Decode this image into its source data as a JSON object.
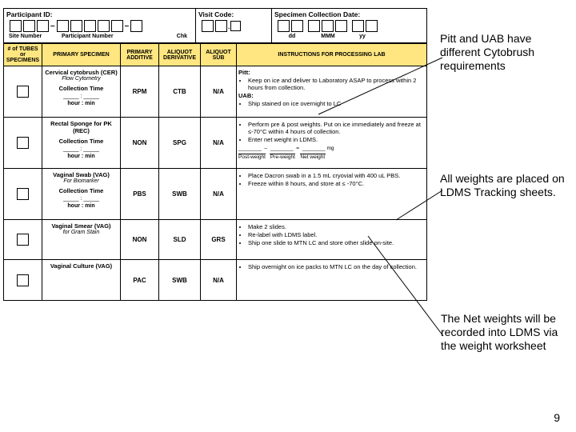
{
  "header": {
    "participant_id_label": "Participant ID:",
    "visit_code_label": "Visit Code:",
    "collection_date_label": "Specimen Collection Date:",
    "site_number": "Site Number",
    "participant_number": "Participant Number",
    "chk": "Chk",
    "dd": "dd",
    "mm": "MMM",
    "yy": "yy"
  },
  "cols": {
    "tubes": "# of TUBES or SPECIMENS",
    "primary": "PRIMARY SPECIMEN",
    "additive": "PRIMARY ADDITIVE",
    "derivative": "ALIQUOT DERIVATIVE",
    "sub": "ALIQUOT SUB",
    "instructions": "INSTRUCTIONS FOR PROCESSING LAB"
  },
  "rows": [
    {
      "name": "Cervical cytobrush (CER)",
      "sub": "Flow Cytometry",
      "collection": "Collection Time",
      "time": "_____ : _____",
      "hm": "hour : min",
      "additive": "RPM",
      "derivative": "CTB",
      "aliquot_sub": "N/A",
      "instr_blocks": [
        {
          "label": "Pitt:",
          "items": [
            "Keep on ice and deliver to Laboratory ASAP to process within 2 hours from collection."
          ]
        },
        {
          "label": "UAB:",
          "items": [
            "Ship stained on ice overnight to LC"
          ]
        }
      ]
    },
    {
      "name": "Rectal Sponge for PK (REC)",
      "sub": "",
      "collection": "Collection Time",
      "time": "_____ : _____",
      "hm": "hour : min",
      "additive": "NON",
      "derivative": "SPG",
      "aliquot_sub": "N/A",
      "instr_blocks": [
        {
          "label": "",
          "items": [
            "Perform pre & post weights. Put on ice immediately and freeze at ≤-70°C within 4 hours of collection.",
            "Enter net weight in LDMS."
          ]
        }
      ],
      "weights": {
        "post": "Post-weight",
        "pre": "Pre-weight",
        "net": "Net weight",
        "unit": "mg"
      }
    },
    {
      "name": "Vaginal Swab (VAG)",
      "sub": "For Biomarker",
      "collection": "Collection Time",
      "time": "_____ : _____",
      "hm": "hour : min",
      "additive": "PBS",
      "derivative": "SWB",
      "aliquot_sub": "N/A",
      "instr_blocks": [
        {
          "label": "",
          "items": [
            "Place Dacron swab in a 1.5 mL cryovial with 400 uL PBS.",
            "Freeze within 8 hours, and store at ≤ -70°C."
          ]
        }
      ]
    },
    {
      "name": "Vaginal Smear (VAG)",
      "sub": "for Gram Stain",
      "collection": "",
      "time": "",
      "hm": "",
      "additive": "NON",
      "derivative": "SLD",
      "aliquot_sub": "GRS",
      "instr_blocks": [
        {
          "label": "",
          "items": [
            "Make 2 slides.",
            "Re-label with LDMS label.",
            "Ship one slide to MTN LC and store other slide on-site."
          ]
        }
      ]
    },
    {
      "name": "Vaginal Culture (VAG)",
      "sub": "",
      "collection": "",
      "time": "",
      "hm": "",
      "additive": "PAC",
      "derivative": "SWB",
      "aliquot_sub": "N/A",
      "instr_blocks": [
        {
          "label": "",
          "items": [
            "Ship overnight on ice packs to MTN LC on the day of collection."
          ]
        }
      ]
    }
  ],
  "annotations": {
    "a1": "Pitt and UAB have different Cytobrush requirements",
    "a2": "All weights are placed on LDMS Tracking sheets.",
    "a3": "The Net weights will be recorded into LDMS via the weight worksheet"
  },
  "page_number": "9",
  "colors": {
    "header_bg": "#ffe680",
    "border": "#000000"
  }
}
